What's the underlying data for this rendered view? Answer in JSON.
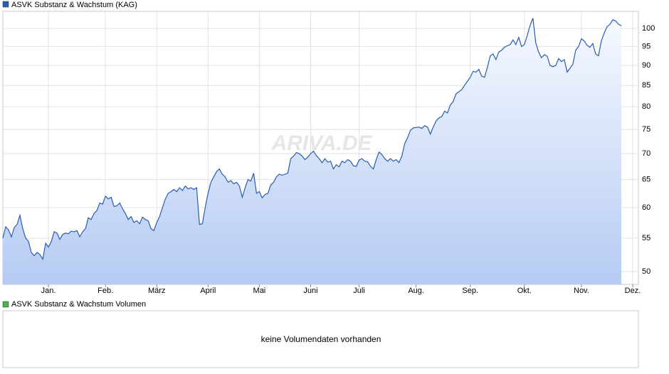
{
  "chart_data": {
    "type": "line",
    "watermark": "ARIVA.DE",
    "log_scale": true,
    "grid": true,
    "xlim": [
      0,
      223
    ],
    "xticks": [
      {
        "value": 16,
        "label": "Jan."
      },
      {
        "value": 36,
        "label": "Feb."
      },
      {
        "value": 54,
        "label": "März"
      },
      {
        "value": 72,
        "label": "April"
      },
      {
        "value": 90,
        "label": "Mai"
      },
      {
        "value": 108,
        "label": "Juni"
      },
      {
        "value": 125,
        "label": "Juli"
      },
      {
        "value": 145,
        "label": "Aug."
      },
      {
        "value": 164,
        "label": "Sep."
      },
      {
        "value": 183,
        "label": "Okt."
      },
      {
        "value": 203,
        "label": "Nov."
      },
      {
        "value": 221,
        "label": "Dez."
      }
    ],
    "ylim": [
      48.2,
      105
    ],
    "yticks": [
      50,
      55,
      60,
      65,
      70,
      75,
      80,
      85,
      90,
      95,
      100
    ],
    "series": [
      {
        "name": "ASVK Substanz & Wachstum (KAG)",
        "color": "#2a5db0",
        "values": [
          55,
          56.8,
          56.3,
          55.2,
          56.7,
          57.2,
          58.7,
          56.5,
          55,
          54.5,
          52.8,
          52.3,
          52.8,
          52.5,
          51.8,
          54.2,
          53.6,
          54.5,
          56,
          55.8,
          54.8,
          55.6,
          55.8,
          55.7,
          56.1,
          56,
          56.2,
          55.2,
          56,
          56.5,
          58.3,
          58,
          59,
          59.5,
          60.8,
          60.6,
          62,
          61.5,
          61.8,
          60.2,
          60.3,
          60.8,
          59.8,
          59,
          58,
          58.5,
          57.5,
          57.8,
          57.3,
          58.4,
          58,
          57.8,
          56.5,
          56.2,
          57.5,
          58.5,
          60,
          61.5,
          62.5,
          62.8,
          63.2,
          62.8,
          63.5,
          63,
          63.8,
          63.3,
          63.5,
          63.2,
          63.5,
          57.2,
          57.3,
          60,
          62.5,
          64.5,
          65.5,
          66.5,
          67,
          66,
          65.5,
          64.5,
          64.8,
          64.2,
          64.5,
          63.8,
          61.8,
          63.5,
          65,
          64.7,
          66.2,
          62.5,
          62.8,
          61.7,
          62.3,
          62.5,
          64,
          64.5,
          65.5,
          66,
          65.8,
          66,
          66.2,
          69,
          69.5,
          70.2,
          70,
          69.5,
          68.8,
          69.3,
          70,
          70.5,
          69.6,
          69,
          68.2,
          69,
          68.3,
          68.5,
          67,
          67.8,
          67.4,
          68.5,
          68.2,
          68.8,
          68.5,
          67.6,
          67.5,
          68.7,
          69,
          68.5,
          68.4,
          67.5,
          67,
          68.8,
          70.3,
          69.8,
          69,
          68.5,
          69,
          68.5,
          68.8,
          68.2,
          69.5,
          72,
          73.2,
          74.8,
          75.3,
          75.4,
          75.5,
          75.2,
          75.8,
          75.5,
          74,
          75.5,
          76.8,
          77.5,
          77.8,
          79,
          78.6,
          80.4,
          81.2,
          83,
          83.5,
          84,
          85,
          86,
          87,
          88.5,
          88.3,
          89,
          87.3,
          87,
          89.5,
          92.5,
          93,
          91.5,
          93.5,
          94,
          94.8,
          95.2,
          95.5,
          96.8,
          95.5,
          97.5,
          95,
          95.5,
          98,
          100.8,
          103,
          96,
          93.5,
          92,
          92.8,
          92.4,
          90,
          89.7,
          90,
          91.8,
          91,
          91.5,
          88.3,
          89.3,
          90.3,
          94,
          95,
          97.1,
          96.5,
          95.3,
          94.8,
          95.8,
          93,
          92.5,
          96.5,
          98.7,
          100.5,
          101.2,
          102.5,
          102.2,
          101.2,
          100.8
        ]
      }
    ]
  },
  "volume_panel": {
    "legend": "ASVK Substanz & Wachstum Volumen",
    "color": "#4caf50",
    "message": "keine Volumendaten vorhanden"
  }
}
